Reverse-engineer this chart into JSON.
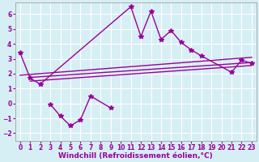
{
  "xlabel": "Windchill (Refroidissement éolien,°C)",
  "background_color": "#d6eff5",
  "grid_color": "#ffffff",
  "line_color": "#990099",
  "xlim": [
    -0.5,
    23.5
  ],
  "ylim": [
    -2.5,
    6.8
  ],
  "xticks": [
    0,
    1,
    2,
    3,
    4,
    5,
    6,
    7,
    8,
    9,
    10,
    11,
    12,
    13,
    14,
    15,
    16,
    17,
    18,
    19,
    20,
    21,
    22,
    23
  ],
  "yticks": [
    -2,
    -1,
    0,
    1,
    2,
    3,
    4,
    5,
    6
  ],
  "series1_x": [
    0,
    1,
    2,
    11,
    12,
    13,
    14,
    15,
    16,
    17,
    18,
    21,
    22,
    23
  ],
  "series1_y": [
    3.4,
    1.7,
    1.3,
    6.5,
    4.5,
    6.2,
    4.3,
    4.9,
    4.1,
    3.6,
    3.2,
    2.1,
    2.9,
    2.7
  ],
  "series2_x": [
    3,
    4,
    5,
    6,
    7,
    9
  ],
  "series2_y": [
    -0.05,
    -0.85,
    -1.5,
    -1.1,
    0.5,
    -0.3
  ],
  "line1_x": [
    1,
    23
  ],
  "line1_y": [
    1.5,
    2.55
  ],
  "line2_x": [
    1,
    23
  ],
  "line2_y": [
    1.75,
    2.75
  ],
  "line3_x": [
    0,
    23
  ],
  "line3_y": [
    1.9,
    3.1
  ],
  "marker": "*",
  "markersize": 4,
  "linewidth": 1.0,
  "tick_fontsize": 5.5,
  "label_fontsize": 6.5
}
